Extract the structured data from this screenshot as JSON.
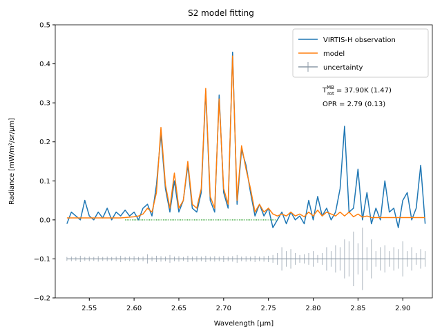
{
  "chart_data": {
    "type": "line",
    "title": "S2 model fitting",
    "xlabel": "Wavelength [μm]",
    "ylabel": "Radiance [mW/m²/sr/μm]",
    "xlim": [
      2.512,
      2.933
    ],
    "ylim": [
      -0.2,
      0.5
    ],
    "xticks": [
      2.55,
      {
        "value": 2.6,
        "label": "2.60"
      },
      2.65,
      {
        "value": 2.7,
        "label": "2.70"
      },
      2.75,
      {
        "value": 2.8,
        "label": "2.80"
      },
      2.85,
      {
        "value": 2.9,
        "label": "2.90"
      }
    ],
    "yticks": [
      {
        "value": -0.2,
        "label": "−0.2"
      },
      {
        "value": -0.1,
        "label": "−0.1"
      },
      {
        "value": 0,
        "label": "0.0"
      },
      0.1,
      0.2,
      0.3,
      0.4,
      0.5
    ],
    "legend": "upper right",
    "x": [
      2.525,
      2.53,
      2.535,
      2.54,
      2.545,
      2.55,
      2.555,
      2.56,
      2.565,
      2.57,
      2.575,
      2.58,
      2.585,
      2.59,
      2.595,
      2.6,
      2.605,
      2.61,
      2.615,
      2.62,
      2.625,
      2.63,
      2.635,
      2.64,
      2.645,
      2.65,
      2.655,
      2.66,
      2.665,
      2.67,
      2.675,
      2.68,
      2.685,
      2.69,
      2.695,
      2.7,
      2.705,
      2.71,
      2.715,
      2.72,
      2.725,
      2.73,
      2.735,
      2.74,
      2.745,
      2.75,
      2.755,
      2.76,
      2.765,
      2.77,
      2.775,
      2.78,
      2.785,
      2.79,
      2.795,
      2.8,
      2.805,
      2.81,
      2.815,
      2.82,
      2.825,
      2.83,
      2.835,
      2.84,
      2.845,
      2.85,
      2.855,
      2.86,
      2.865,
      2.87,
      2.875,
      2.88,
      2.885,
      2.89,
      2.895,
      2.9,
      2.905,
      2.91,
      2.915,
      2.92,
      2.925
    ],
    "series": [
      {
        "name": "VIRTIS-H observation",
        "color": "#1f77b4",
        "values": [
          -0.01,
          0.02,
          0.01,
          0,
          0.05,
          0.01,
          0,
          0.02,
          0.005,
          0.03,
          0,
          0.02,
          0.01,
          0.025,
          0.01,
          0.02,
          0,
          0.03,
          0.04,
          0.01,
          0.09,
          0.22,
          0.08,
          0.02,
          0.1,
          0.02,
          0.05,
          0.14,
          0.03,
          0.02,
          0.07,
          0.33,
          0.05,
          0.02,
          0.32,
          0.07,
          0.03,
          0.43,
          0.04,
          0.18,
          0.14,
          0.07,
          0.01,
          0.04,
          0.01,
          0.03,
          -0.02,
          0,
          0.02,
          -0.01,
          0.02,
          0,
          0.01,
          -0.01,
          0.05,
          0,
          0.06,
          0.01,
          0.03,
          0,
          0.02,
          0.08,
          0.24,
          0.02,
          0.03,
          0.13,
          0,
          0.07,
          -0.01,
          0.03,
          0,
          0.1,
          0.02,
          0.03,
          -0.02,
          0.05,
          0.07,
          0,
          0.03,
          0.14,
          -0.01
        ]
      },
      {
        "name": "model",
        "color": "#ff7f0e",
        "values": [
          0.005,
          0.005,
          0.005,
          0.005,
          0.005,
          0.005,
          0.005,
          0.005,
          0.005,
          0.005,
          0.005,
          0.005,
          0.005,
          0.006,
          0.007,
          0.008,
          0.01,
          0.015,
          0.03,
          0.02,
          0.07,
          0.237,
          0.09,
          0.03,
          0.12,
          0.03,
          0.05,
          0.15,
          0.04,
          0.03,
          0.08,
          0.337,
          0.06,
          0.03,
          0.31,
          0.08,
          0.04,
          0.42,
          0.05,
          0.19,
          0.13,
          0.08,
          0.02,
          0.04,
          0.02,
          0.03,
          0.015,
          0.01,
          0.015,
          0.01,
          0.02,
          0.01,
          0.015,
          0.008,
          0.02,
          0.01,
          0.025,
          0.01,
          0.02,
          0.015,
          0.01,
          0.02,
          0.01,
          0.02,
          0.008,
          0.015,
          0.007,
          0.01,
          0.006,
          0.006,
          0.006,
          0.006,
          0.006,
          0.006,
          0.006,
          0.006,
          0.006,
          0.006,
          0.006,
          0.006,
          0.006
        ]
      },
      {
        "name": "uncertainty",
        "color": "#8c99a6",
        "errorbar": true,
        "values": [
          -0.1,
          -0.1,
          -0.1,
          -0.1,
          -0.1,
          -0.1,
          -0.1,
          -0.1,
          -0.1,
          -0.1,
          -0.1,
          -0.1,
          -0.1,
          -0.1,
          -0.1,
          -0.1,
          -0.1,
          -0.1,
          -0.1,
          -0.1,
          -0.1,
          -0.1,
          -0.1,
          -0.1,
          -0.1,
          -0.1,
          -0.1,
          -0.1,
          -0.1,
          -0.1,
          -0.1,
          -0.1,
          -0.1,
          -0.1,
          -0.1,
          -0.1,
          -0.1,
          -0.1,
          -0.1,
          -0.1,
          -0.1,
          -0.1,
          -0.1,
          -0.1,
          -0.1,
          -0.1,
          -0.1,
          -0.1,
          -0.1,
          -0.1,
          -0.1,
          -0.1,
          -0.1,
          -0.1,
          -0.1,
          -0.1,
          -0.1,
          -0.1,
          -0.1,
          -0.1,
          -0.1,
          -0.1,
          -0.1,
          -0.1,
          -0.1,
          -0.1,
          -0.1,
          -0.1,
          -0.1,
          -0.1,
          -0.1,
          -0.1,
          -0.1,
          -0.1,
          -0.1,
          -0.1,
          -0.1,
          -0.1,
          -0.1,
          -0.1,
          -0.1
        ],
        "errors": [
          0.005,
          0.006,
          0.005,
          0.008,
          0.005,
          0.006,
          0.005,
          0.007,
          0.005,
          0.006,
          0.005,
          0.006,
          0.008,
          0.005,
          0.006,
          0.007,
          0.005,
          0.006,
          0.012,
          0.006,
          0.008,
          0.007,
          0.006,
          0.01,
          0.006,
          0.007,
          0.005,
          0.008,
          0.006,
          0.007,
          0.006,
          0.008,
          0.006,
          0.007,
          0.006,
          0.008,
          0.006,
          0.007,
          0.01,
          0.006,
          0.007,
          0.006,
          0.008,
          0.006,
          0.007,
          0.008,
          0.01,
          0.015,
          0.03,
          0.02,
          0.025,
          0.015,
          0.01,
          0.012,
          0.015,
          0.02,
          0.01,
          0.015,
          0.03,
          0.02,
          0.035,
          0.03,
          0.05,
          0.045,
          0.07,
          0.04,
          0.08,
          0.03,
          0.05,
          0.02,
          0.03,
          0.035,
          0.02,
          0.03,
          0.025,
          0.045,
          0.02,
          0.03,
          0.015,
          0.025,
          0.02
        ]
      },
      {
        "color": "#2ca02c",
        "dotted": true,
        "x": [
          2.59,
          2.76
        ],
        "values": [
          0,
          0
        ]
      }
    ],
    "annotations": [
      {
        "text": "T",
        "sup": "MB",
        "sub": "rot",
        "rest": " = 37.90K (1.47)"
      },
      "OPR = 2.79 (0.13)"
    ]
  }
}
